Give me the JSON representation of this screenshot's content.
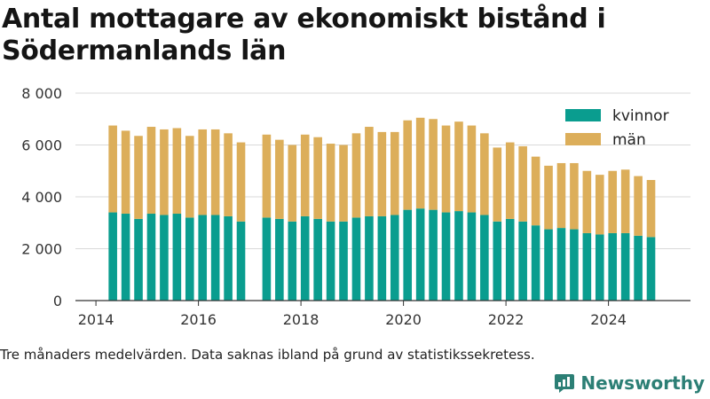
{
  "title": "Antal mottagare av ekonomiskt bistånd i Södermanlands län",
  "note": "Tre månaders medelvärden. Data saknas ibland på grund av statistikssekretess.",
  "brand": {
    "name": "Newsworthy",
    "icon": "newsworthy-logo-icon",
    "color": "#2c7f75"
  },
  "chart_data": {
    "type": "bar",
    "stacked": true,
    "title": "Antal mottagare av ekonomiskt bistånd i Södermanlands län",
    "xlabel": "",
    "ylabel": "",
    "ylim": [
      0,
      8000
    ],
    "xlim": [
      2013.6,
      2025.6
    ],
    "grid": true,
    "legend_position": "top-right",
    "x_ticks": [
      {
        "value": 2014,
        "label": "2014"
      },
      {
        "value": 2016,
        "label": "2016"
      },
      {
        "value": 2018,
        "label": "2018"
      },
      {
        "value": 2020,
        "label": "2020"
      },
      {
        "value": 2022,
        "label": "2022"
      },
      {
        "value": 2024,
        "label": "2024"
      }
    ],
    "y_ticks": [
      {
        "value": 0,
        "label": "0"
      },
      {
        "value": 2000,
        "label": "2 000"
      },
      {
        "value": 4000,
        "label": "4 000"
      },
      {
        "value": 6000,
        "label": "6 000"
      },
      {
        "value": 8000,
        "label": "8 000"
      }
    ],
    "x": [
      2014.33,
      2014.58,
      2014.83,
      2015.08,
      2015.33,
      2015.58,
      2015.83,
      2016.08,
      2016.33,
      2016.58,
      2016.83,
      2017.33,
      2017.58,
      2017.83,
      2018.08,
      2018.33,
      2018.58,
      2018.83,
      2019.08,
      2019.33,
      2019.58,
      2019.83,
      2020.08,
      2020.33,
      2020.58,
      2020.83,
      2021.08,
      2021.33,
      2021.58,
      2021.83,
      2022.08,
      2022.33,
      2022.58,
      2022.83,
      2023.08,
      2023.33,
      2023.58,
      2023.83,
      2024.08,
      2024.33,
      2024.58,
      2024.83
    ],
    "series": [
      {
        "name": "kvinnor",
        "color": "#0a9d8f",
        "values": [
          3400,
          3350,
          3150,
          3350,
          3300,
          3350,
          3200,
          3300,
          3300,
          3250,
          3050,
          3200,
          3150,
          3050,
          3250,
          3150,
          3050,
          3050,
          3200,
          3250,
          3250,
          3300,
          3500,
          3550,
          3500,
          3400,
          3450,
          3400,
          3300,
          3050,
          3150,
          3050,
          2900,
          2750,
          2800,
          2750,
          2600,
          2550,
          2600,
          2600,
          2500,
          2450
        ]
      },
      {
        "name": "män",
        "color": "#dcae5a",
        "values": [
          3350,
          3200,
          3200,
          3350,
          3300,
          3300,
          3150,
          3300,
          3300,
          3200,
          3050,
          3200,
          3050,
          2950,
          3150,
          3150,
          3000,
          2950,
          3250,
          3450,
          3250,
          3200,
          3450,
          3500,
          3500,
          3350,
          3450,
          3350,
          3150,
          2850,
          2950,
          2900,
          2650,
          2450,
          2500,
          2550,
          2400,
          2300,
          2400,
          2450,
          2300,
          2200
        ]
      }
    ]
  }
}
